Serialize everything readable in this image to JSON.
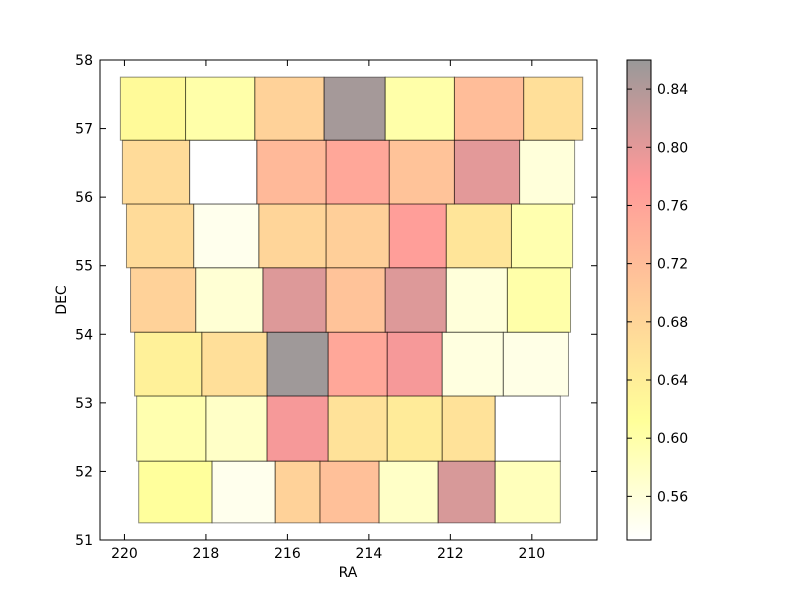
{
  "chart_data": {
    "type": "heatmap",
    "title": "",
    "xlabel": "RA",
    "ylabel": "DEC",
    "xlim": [
      220.6,
      208.4
    ],
    "ylim": [
      51,
      58
    ],
    "x_reversed": true,
    "xticks": [
      220,
      218,
      216,
      214,
      212,
      210
    ],
    "yticks": [
      51,
      52,
      53,
      54,
      55,
      56,
      57,
      58
    ],
    "grid": false,
    "colorbar": {
      "min": 0.53,
      "max": 0.86,
      "ticks": [
        0.56,
        0.6,
        0.64,
        0.68,
        0.72,
        0.76,
        0.8,
        0.84
      ],
      "tick_labels": [
        "0.56",
        "0.60",
        "0.64",
        "0.68",
        "0.72",
        "0.76",
        "0.80",
        "0.84"
      ],
      "colormap": [
        "#ffffff",
        "#ffff00",
        "#ff8000",
        "#ff0000",
        "#000000"
      ],
      "alpha": 0.4
    },
    "rows": [
      {
        "dec": [
          51.25,
          52.15
        ],
        "tiles": [
          {
            "ra": [
              219.65,
              217.85
            ],
            "value": 0.61
          },
          {
            "ra": [
              217.85,
              216.3
            ],
            "value": 0.545
          },
          {
            "ra": [
              216.3,
              215.2
            ],
            "value": 0.685
          },
          {
            "ra": [
              215.2,
              213.75
            ],
            "value": 0.715
          },
          {
            "ra": [
              213.75,
              212.3
            ],
            "value": 0.575
          },
          {
            "ra": [
              212.3,
              210.9
            ],
            "value": 0.81
          },
          {
            "ra": [
              210.9,
              209.3
            ],
            "value": 0.585
          }
        ]
      },
      {
        "dec": [
          52.15,
          53.1
        ],
        "tiles": [
          {
            "ra": [
              219.7,
              218.0
            ],
            "value": 0.595
          },
          {
            "ra": [
              218.0,
              216.5
            ],
            "value": 0.575
          },
          {
            "ra": [
              216.5,
              215.0
            ],
            "value": 0.785
          },
          {
            "ra": [
              215.0,
              213.55
            ],
            "value": 0.66
          },
          {
            "ra": [
              213.55,
              212.2
            ],
            "value": 0.645
          },
          {
            "ra": [
              212.2,
              210.9
            ],
            "value": 0.66
          },
          {
            "ra": [
              210.9,
              209.3
            ],
            "value": 0.53
          }
        ]
      },
      {
        "dec": [
          53.1,
          54.03
        ],
        "tiles": [
          {
            "ra": [
              219.75,
              218.1
            ],
            "value": 0.635
          },
          {
            "ra": [
              218.1,
              216.5
            ],
            "value": 0.665
          },
          {
            "ra": [
              216.5,
              215.0
            ],
            "value": 0.855
          },
          {
            "ra": [
              215.0,
              213.55
            ],
            "value": 0.755
          },
          {
            "ra": [
              213.55,
              212.2
            ],
            "value": 0.785
          },
          {
            "ra": [
              212.2,
              210.7
            ],
            "value": 0.555
          },
          {
            "ra": [
              210.7,
              209.1
            ],
            "value": 0.55
          }
        ]
      },
      {
        "dec": [
          54.03,
          54.97
        ],
        "tiles": [
          {
            "ra": [
              219.85,
              218.25
            ],
            "value": 0.685
          },
          {
            "ra": [
              218.25,
              216.6
            ],
            "value": 0.565
          },
          {
            "ra": [
              216.6,
              215.05
            ],
            "value": 0.805
          },
          {
            "ra": [
              215.05,
              213.6
            ],
            "value": 0.71
          },
          {
            "ra": [
              213.6,
              212.1
            ],
            "value": 0.805
          },
          {
            "ra": [
              212.1,
              210.6
            ],
            "value": 0.56
          },
          {
            "ra": [
              210.6,
              209.05
            ],
            "value": 0.6
          }
        ]
      },
      {
        "dec": [
          54.97,
          55.9
        ],
        "tiles": [
          {
            "ra": [
              219.95,
              218.3
            ],
            "value": 0.67
          },
          {
            "ra": [
              218.3,
              216.7
            ],
            "value": 0.545
          },
          {
            "ra": [
              216.7,
              215.05
            ],
            "value": 0.68
          },
          {
            "ra": [
              215.05,
              213.5
            ],
            "value": 0.69
          },
          {
            "ra": [
              213.5,
              212.1
            ],
            "value": 0.77
          },
          {
            "ra": [
              212.1,
              210.5
            ],
            "value": 0.655
          },
          {
            "ra": [
              210.5,
              209.0
            ],
            "value": 0.595
          }
        ]
      },
      {
        "dec": [
          55.9,
          56.83
        ],
        "tiles": [
          {
            "ra": [
              220.05,
              218.4
            ],
            "value": 0.67
          },
          {
            "ra": [
              218.4,
              216.75
            ],
            "value": 0.53
          },
          {
            "ra": [
              216.75,
              215.05
            ],
            "value": 0.725
          },
          {
            "ra": [
              215.05,
              213.5
            ],
            "value": 0.755
          },
          {
            "ra": [
              213.5,
              211.9
            ],
            "value": 0.71
          },
          {
            "ra": [
              211.9,
              210.3
            ],
            "value": 0.8
          },
          {
            "ra": [
              210.3,
              208.95
            ],
            "value": 0.56
          }
        ]
      },
      {
        "dec": [
          56.83,
          57.75
        ],
        "tiles": [
          {
            "ra": [
              220.1,
              218.5
            ],
            "value": 0.62
          },
          {
            "ra": [
              218.5,
              216.8
            ],
            "value": 0.6
          },
          {
            "ra": [
              216.8,
              215.1
            ],
            "value": 0.685
          },
          {
            "ra": [
              215.1,
              213.6
            ],
            "value": 0.85
          },
          {
            "ra": [
              213.6,
              211.9
            ],
            "value": 0.6
          },
          {
            "ra": [
              211.9,
              210.2
            ],
            "value": 0.72
          },
          {
            "ra": [
              210.2,
              208.75
            ],
            "value": 0.665
          }
        ]
      }
    ]
  }
}
